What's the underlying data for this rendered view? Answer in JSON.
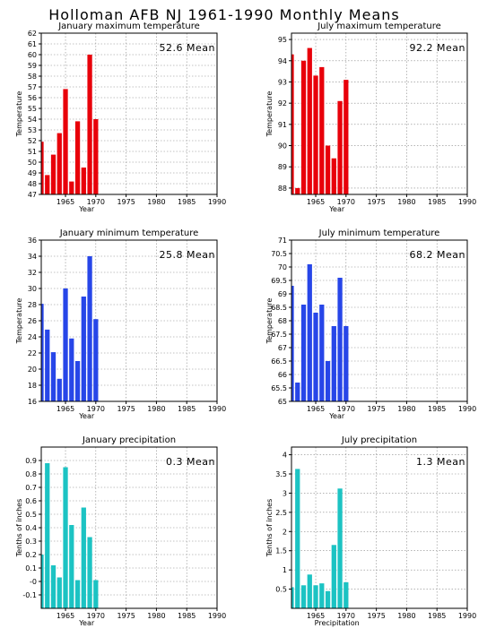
{
  "title": "Holloman AFB NJ  1961-1990 Monthly Means",
  "colors": {
    "red": "#e8000a",
    "blue": "#2746e8",
    "cyan": "#1cc3c3"
  },
  "chart_data": [
    {
      "type": "bar",
      "title": "January maximum temperature",
      "xlabel": "Year",
      "ylabel": "Temperature",
      "mean_label": "52.6 Mean",
      "color": "red",
      "xlim": [
        1961,
        1990
      ],
      "x_ticks": [
        1965,
        1970,
        1975,
        1980,
        1985,
        1990
      ],
      "ylim": [
        47,
        62
      ],
      "y_ticks": [
        47,
        48,
        49,
        50,
        51,
        52,
        53,
        54,
        55,
        56,
        57,
        58,
        59,
        60,
        61,
        62
      ],
      "x": [
        1961,
        1962,
        1963,
        1964,
        1965,
        1966,
        1967,
        1968,
        1969,
        1970
      ],
      "values": [
        51.9,
        48.8,
        50.7,
        52.7,
        56.8,
        48.2,
        53.8,
        49.5,
        60.0,
        54.0
      ]
    },
    {
      "type": "bar",
      "title": "July maximum temperature",
      "xlabel": "Year",
      "ylabel": "Temperature",
      "mean_label": "92.2 Mean",
      "color": "red",
      "xlim": [
        1961,
        1990
      ],
      "x_ticks": [
        1965,
        1970,
        1975,
        1980,
        1985,
        1990
      ],
      "ylim": [
        87.7,
        95.3
      ],
      "y_ticks": [
        88,
        89,
        90,
        91,
        92,
        93,
        94,
        95
      ],
      "x": [
        1961,
        1962,
        1963,
        1964,
        1965,
        1966,
        1967,
        1968,
        1969,
        1970
      ],
      "values": [
        94.3,
        88.0,
        94.0,
        94.6,
        93.3,
        93.7,
        90.0,
        89.4,
        92.1,
        93.1
      ]
    },
    {
      "type": "bar",
      "title": "January minimum temperature",
      "xlabel": "Year",
      "ylabel": "Temperature",
      "mean_label": "25.8 Mean",
      "color": "blue",
      "xlim": [
        1961,
        1990
      ],
      "x_ticks": [
        1965,
        1970,
        1975,
        1980,
        1985,
        1990
      ],
      "ylim": [
        16,
        36
      ],
      "y_ticks": [
        16,
        18,
        20,
        22,
        24,
        26,
        28,
        30,
        32,
        34,
        36
      ],
      "x": [
        1961,
        1962,
        1963,
        1964,
        1965,
        1966,
        1967,
        1968,
        1969,
        1970
      ],
      "values": [
        28.1,
        24.9,
        22.1,
        18.8,
        30.0,
        23.8,
        21.0,
        29.0,
        34.0,
        26.2
      ]
    },
    {
      "type": "bar",
      "title": "July minimum temperature",
      "xlabel": "Year",
      "ylabel": "Temperature",
      "mean_label": "68.2 Mean",
      "color": "blue",
      "xlim": [
        1961,
        1990
      ],
      "x_ticks": [
        1965,
        1970,
        1975,
        1980,
        1985,
        1990
      ],
      "ylim": [
        65,
        71
      ],
      "y_ticks": [
        65,
        65.5,
        66,
        66.5,
        67,
        67.5,
        68,
        68.5,
        69,
        69.5,
        70,
        70.5,
        71
      ],
      "x": [
        1961,
        1962,
        1963,
        1964,
        1965,
        1966,
        1967,
        1968,
        1969,
        1970
      ],
      "values": [
        69.3,
        65.7,
        68.6,
        70.1,
        68.3,
        68.6,
        66.5,
        67.8,
        69.6,
        67.8
      ]
    },
    {
      "type": "bar",
      "title": "January precipitation",
      "xlabel": "Year",
      "ylabel": "Tenths of inches",
      "mean_label": "0.3 Mean",
      "color": "cyan",
      "xlim": [
        1961,
        1990
      ],
      "x_ticks": [
        1965,
        1970,
        1975,
        1980,
        1985,
        1990
      ],
      "ylim": [
        -0.2,
        1.0
      ],
      "y_ticks": [
        -0.1,
        0,
        0.1,
        0.2,
        0.3,
        0.4,
        0.5,
        0.6,
        0.7,
        0.8,
        0.9
      ],
      "y_tick_labels": [
        "-0.1",
        "-0",
        "0.1",
        "0.2",
        "0.3",
        "0.4",
        "0.5",
        "0.6",
        "0.7",
        "0.8",
        "0.9"
      ],
      "x": [
        1961,
        1962,
        1963,
        1964,
        1965,
        1966,
        1967,
        1968,
        1969,
        1970
      ],
      "values": [
        0.2,
        0.88,
        0.12,
        0.03,
        0.85,
        0.42,
        0.01,
        0.55,
        0.33,
        0.01
      ]
    },
    {
      "type": "bar",
      "title": "July precipitation",
      "xlabel": "Precipitation",
      "ylabel": "Tenths of inches",
      "mean_label": "1.3 Mean",
      "color": "cyan",
      "xlim": [
        1961,
        1990
      ],
      "x_ticks": [
        1965,
        1970,
        1975,
        1980,
        1985,
        1990
      ],
      "ylim": [
        0,
        4.2
      ],
      "y_ticks": [
        0.5,
        1,
        1.5,
        2,
        2.5,
        3,
        3.5,
        4
      ],
      "x": [
        1961,
        1962,
        1963,
        1964,
        1965,
        1966,
        1967,
        1968,
        1969,
        1970
      ],
      "values": [
        0.55,
        3.63,
        0.6,
        0.88,
        0.6,
        0.65,
        0.45,
        1.65,
        3.12,
        0.68
      ]
    }
  ]
}
